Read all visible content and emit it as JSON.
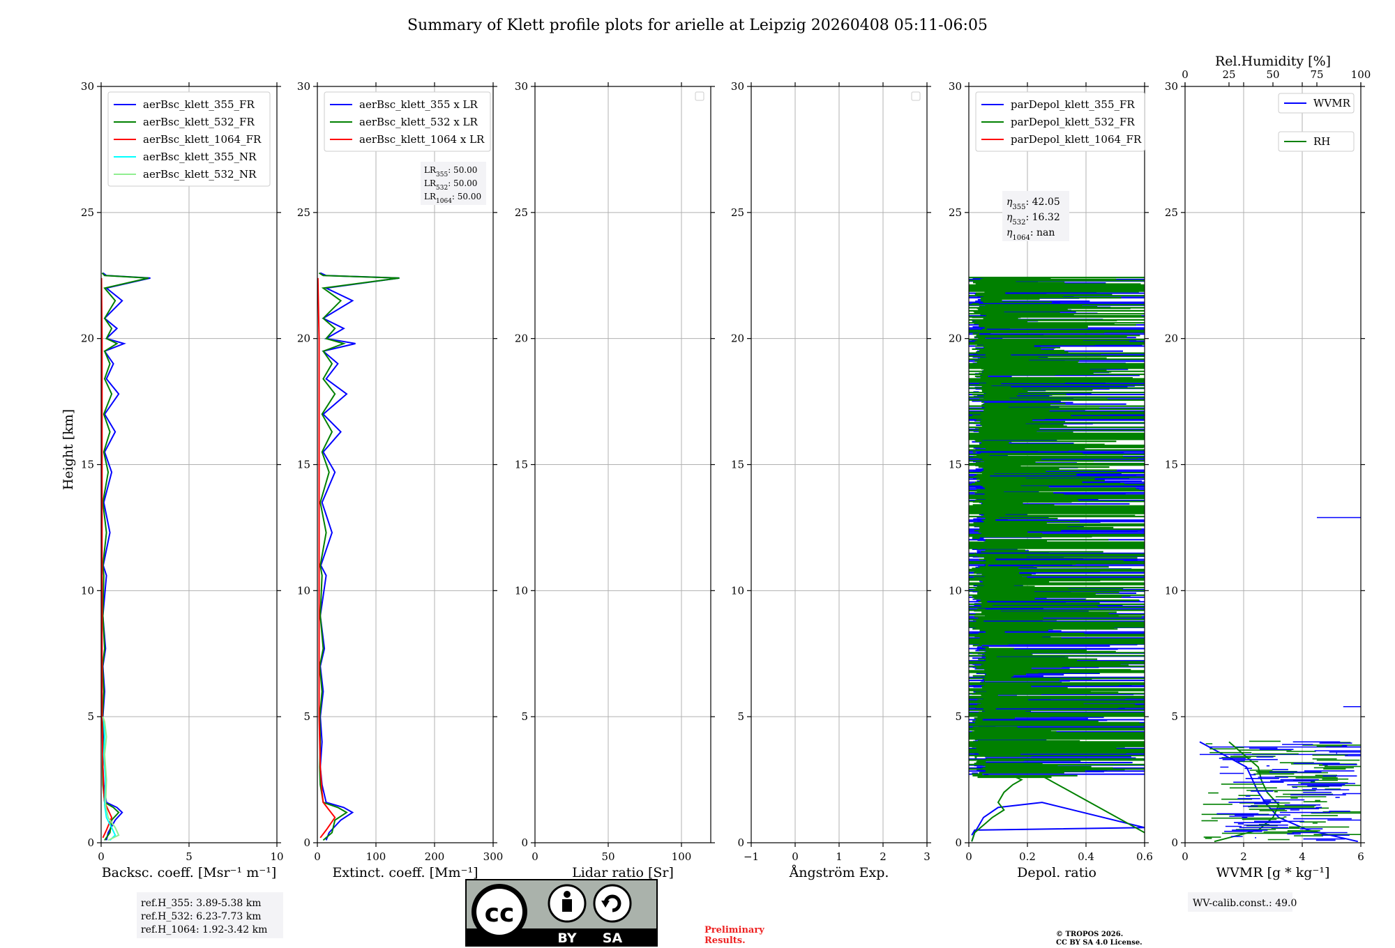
{
  "figure_title": "Summary of Klett profile plots for arielle at Leipzig 20260408 05:11-06:05",
  "colors": {
    "blue": "#0000ff",
    "green": "#008000",
    "red": "#ff0000",
    "cyan": "#00ffff",
    "lightgreen": "#90ee90",
    "grid": "#b0b0b0",
    "box": "#f3f3f6",
    "preliminary": "#ee2222"
  },
  "chart_data": [
    {
      "type": "line",
      "id": "backscatter",
      "xlabel": "Backsc. coeff. [Msr⁻¹ m⁻¹]",
      "ylabel": "Height [km]",
      "xlim": [
        0,
        10
      ],
      "ylim": [
        0,
        30
      ],
      "xticks": [
        0,
        5,
        10
      ],
      "yticks": [
        0,
        5,
        10,
        15,
        20,
        25,
        30
      ],
      "grid": true,
      "legend_loc": "upper-left",
      "series": [
        {
          "name": "aerBsc_klett_355_FR",
          "color": "#0000ff",
          "x": [
            0.3,
            0.4,
            0.8,
            1.2,
            0.9,
            0.3,
            0.15,
            0.1,
            0.15,
            0.1,
            0.2,
            0.1,
            0.25,
            0.1,
            0.3,
            0.12,
            0.5,
            0.15,
            0.6,
            0.2,
            0.8,
            0.2,
            1.0,
            0.3,
            0.7,
            0.2,
            1.3,
            0.3,
            0.9,
            0.2,
            1.2,
            0.3,
            2.8,
            0.3,
            0.1
          ],
          "y": [
            0.1,
            0.4,
            0.9,
            1.2,
            1.4,
            1.6,
            2.3,
            3.0,
            4.0,
            5.0,
            6.0,
            7.0,
            7.7,
            9.0,
            10.6,
            11.0,
            12.3,
            13.5,
            14.7,
            15.5,
            16.3,
            17.0,
            17.8,
            18.4,
            19.0,
            19.5,
            19.8,
            20.0,
            20.4,
            20.8,
            21.5,
            22.0,
            22.4,
            22.5,
            22.6
          ]
        },
        {
          "name": "aerBsc_klett_532_FR",
          "color": "#008000",
          "x": [
            0.2,
            0.5,
            0.6,
            1.0,
            0.7,
            0.2,
            0.1,
            0.08,
            0.1,
            0.08,
            0.15,
            0.08,
            0.2,
            0.1,
            0.15,
            0.1,
            0.3,
            0.1,
            0.4,
            0.15,
            0.5,
            0.15,
            0.6,
            0.2,
            0.5,
            0.2,
            0.9,
            0.3,
            0.6,
            0.2,
            0.8,
            0.2,
            2.7,
            0.2,
            0.05
          ],
          "y": [
            0.1,
            0.4,
            0.9,
            1.2,
            1.4,
            1.6,
            2.3,
            3.0,
            4.0,
            5.0,
            6.0,
            7.0,
            7.7,
            9.0,
            10.6,
            11.0,
            12.3,
            13.5,
            14.7,
            15.5,
            16.3,
            17.0,
            17.8,
            18.4,
            19.0,
            19.5,
            19.8,
            20.0,
            20.4,
            20.8,
            21.5,
            22.0,
            22.4,
            22.5,
            22.6
          ]
        },
        {
          "name": "aerBsc_klett_1064_FR",
          "color": "#ff0000",
          "x": [
            0.1,
            0.3,
            0.6,
            0.4,
            0.2,
            0.15,
            0.1,
            0.05,
            0.05,
            0.05,
            0.05,
            0.02
          ],
          "y": [
            0.2,
            0.5,
            1.0,
            1.3,
            1.6,
            2.0,
            3.0,
            5.0,
            10.0,
            15.0,
            20.0,
            22.4
          ]
        },
        {
          "name": "aerBsc_klett_355_NR",
          "color": "#00ffff",
          "x": [
            0.5,
            0.8,
            0.6,
            0.3,
            0.2,
            0.25,
            0.15,
            0.2,
            0.15,
            0.1
          ],
          "y": [
            0.1,
            0.3,
            0.6,
            1.0,
            1.5,
            2.5,
            3.5,
            4.2,
            4.8,
            5.0
          ]
        },
        {
          "name": "aerBsc_klett_532_NR",
          "color": "#90ee90",
          "x": [
            0.4,
            1.0,
            0.8,
            0.4,
            0.25,
            0.3,
            0.2,
            0.3,
            0.2,
            0.1
          ],
          "y": [
            0.1,
            0.3,
            0.6,
            1.0,
            1.5,
            2.5,
            3.5,
            4.2,
            4.8,
            5.0
          ]
        }
      ],
      "annotation": [
        "ref.H_355: 3.89-5.38 km",
        "ref.H_532: 6.23-7.73 km",
        "ref.H_1064: 1.92-3.42 km"
      ]
    },
    {
      "type": "line",
      "id": "extinction",
      "xlabel": "Extinct. coeff. [Mm⁻¹]",
      "xlim": [
        0,
        300
      ],
      "ylim": [
        0,
        30
      ],
      "xticks": [
        0,
        100,
        200,
        300
      ],
      "yticks": [
        0,
        5,
        10,
        15,
        20,
        25,
        30
      ],
      "grid": true,
      "legend_loc": "upper-left",
      "series": [
        {
          "name": "aerBsc_klett_355 x LR",
          "color": "#0000ff",
          "x": [
            15,
            20,
            40,
            60,
            45,
            15,
            8,
            5,
            8,
            5,
            10,
            5,
            12,
            5,
            15,
            6,
            25,
            8,
            30,
            10,
            40,
            10,
            50,
            15,
            35,
            10,
            65,
            15,
            45,
            10,
            60,
            15,
            140,
            15,
            5
          ],
          "y": [
            0.1,
            0.4,
            0.9,
            1.2,
            1.4,
            1.6,
            2.3,
            3.0,
            4.0,
            5.0,
            6.0,
            7.0,
            7.7,
            9.0,
            10.6,
            11.0,
            12.3,
            13.5,
            14.7,
            15.5,
            16.3,
            17.0,
            17.8,
            18.4,
            19.0,
            19.5,
            19.8,
            20.0,
            20.4,
            20.8,
            21.5,
            22.0,
            22.4,
            22.5,
            22.6
          ]
        },
        {
          "name": "aerBsc_klett_532 x LR",
          "color": "#008000",
          "x": [
            10,
            25,
            30,
            50,
            35,
            10,
            5,
            4,
            5,
            4,
            8,
            4,
            10,
            5,
            8,
            5,
            15,
            5,
            20,
            8,
            25,
            8,
            30,
            10,
            25,
            10,
            45,
            15,
            30,
            10,
            40,
            10,
            140,
            10,
            3
          ],
          "y": [
            0.1,
            0.4,
            0.9,
            1.2,
            1.4,
            1.6,
            2.3,
            3.0,
            4.0,
            5.0,
            6.0,
            7.0,
            7.7,
            9.0,
            10.6,
            11.0,
            12.3,
            13.5,
            14.7,
            15.5,
            16.3,
            17.0,
            17.8,
            18.4,
            19.0,
            19.5,
            19.8,
            20.0,
            20.4,
            20.8,
            21.5,
            22.0,
            22.4,
            22.5,
            22.6
          ]
        },
        {
          "name": "aerBsc_klett_1064 x LR",
          "color": "#ff0000",
          "x": [
            5,
            15,
            30,
            20,
            10,
            8,
            5,
            3,
            3,
            3,
            3,
            1
          ],
          "y": [
            0.2,
            0.5,
            1.0,
            1.3,
            1.6,
            2.0,
            3.0,
            5.0,
            10.0,
            15.0,
            20.0,
            22.4
          ]
        }
      ],
      "annotation": [
        "LR355: 50.00",
        "LR532: 50.00",
        "LR1064: 50.00"
      ]
    },
    {
      "type": "line",
      "id": "lidar_ratio",
      "xlabel": "Lidar ratio [Sr]",
      "xlim": [
        0,
        120
      ],
      "ylim": [
        0,
        30
      ],
      "xticks": [
        0,
        50,
        100
      ],
      "yticks": [
        0,
        5,
        10,
        15,
        20,
        25,
        30
      ],
      "grid": true,
      "legend_loc": "upper-right",
      "series": []
    },
    {
      "type": "line",
      "id": "angstrom",
      "xlabel": "Ångström Exp.",
      "xlim": [
        -1,
        3
      ],
      "ylim": [
        0,
        30
      ],
      "xticks": [
        -1,
        0,
        1,
        2,
        3
      ],
      "yticks": [
        0,
        5,
        10,
        15,
        20,
        25,
        30
      ],
      "grid": true,
      "legend_loc": "upper-right",
      "series": []
    },
    {
      "type": "line",
      "id": "depol",
      "xlabel": "Depol. ratio",
      "xlim": [
        0,
        0.6
      ],
      "ylim": [
        0,
        30
      ],
      "xticks": [
        0.0,
        0.2,
        0.4,
        0.6
      ],
      "yticks": [
        0,
        5,
        10,
        15,
        20,
        25,
        30
      ],
      "grid": true,
      "legend_loc": "upper-left",
      "series": [
        {
          "name": "parDepol_klett_355_FR",
          "color": "#0000ff",
          "x": [
            0.01,
            0.02,
            0.05,
            0.1,
            0.25,
            0.6,
            0.02,
            0.01
          ],
          "y": [
            0.05,
            0.4,
            1.0,
            1.4,
            1.6,
            0.6,
            0.5,
            0.3
          ],
          "noise": {
            "start_km": 2.7,
            "end_km": 22.4
          }
        },
        {
          "name": "parDepol_klett_532_FR",
          "color": "#008000",
          "x": [
            0.01,
            0.02,
            0.06,
            0.08,
            0.12,
            0.1,
            0.12,
            0.15,
            0.18,
            0.16,
            0.25,
            0.6
          ],
          "y": [
            0.05,
            0.4,
            0.8,
            1.0,
            1.3,
            1.6,
            2.0,
            2.3,
            2.5,
            2.6,
            2.65,
            0.4
          ],
          "noise": {
            "start_km": 2.6,
            "end_km": 22.4
          }
        },
        {
          "name": "parDepol_klett_1064_FR",
          "color": "#ff0000",
          "x": [],
          "y": []
        }
      ],
      "annotation": [
        "η355: 42.05",
        "η532: 16.32",
        "η1064: nan"
      ]
    },
    {
      "type": "line",
      "id": "wvmr",
      "xlabel": "WVMR [g * kg⁻¹]",
      "xlabel_top": "Rel.Humidity [%]",
      "xlim": [
        0,
        6
      ],
      "xlim_top": [
        0,
        100
      ],
      "ylim": [
        0,
        30
      ],
      "xticks": [
        0,
        2,
        4,
        6
      ],
      "xticks_top": [
        0,
        25,
        50,
        75,
        100
      ],
      "yticks": [
        0,
        5,
        10,
        15,
        20,
        25,
        30
      ],
      "grid": true,
      "series": [
        {
          "name": "WVMR",
          "color": "#0000ff",
          "x": [
            5.9,
            4.2,
            3.2,
            2.8,
            2.5,
            2.3,
            2.1,
            0.5
          ],
          "y": [
            0.05,
            0.5,
            1.0,
            1.5,
            2.0,
            2.5,
            3.0,
            4.0
          ],
          "segments": [
            [
              4.5,
              12.9,
              6.0,
              12.9
            ],
            [
              5.4,
              5.4,
              6.0,
              5.4
            ],
            [
              0.5,
              3.5,
              6.0,
              3.5
            ],
            [
              0.8,
              3.8,
              6.0,
              3.8
            ]
          ]
        },
        {
          "name": "RH",
          "color": "#008000",
          "x": [
            1.0,
            2.5,
            3.0,
            3.2,
            2.8,
            2.6,
            2.5,
            1.5
          ],
          "y": [
            0.05,
            0.5,
            1.0,
            1.5,
            2.0,
            2.5,
            3.0,
            4.0
          ]
        }
      ],
      "annotation": [
        "WV-calib.const.: 49.0"
      ]
    }
  ],
  "footer": {
    "license_badge": {
      "cc": "cc",
      "by": "BY",
      "sa": "SA"
    },
    "preliminary": [
      "Preliminary",
      "Results."
    ],
    "copyright": [
      "© TROPOS 2026.",
      "CC BY SA 4.0 License."
    ]
  }
}
